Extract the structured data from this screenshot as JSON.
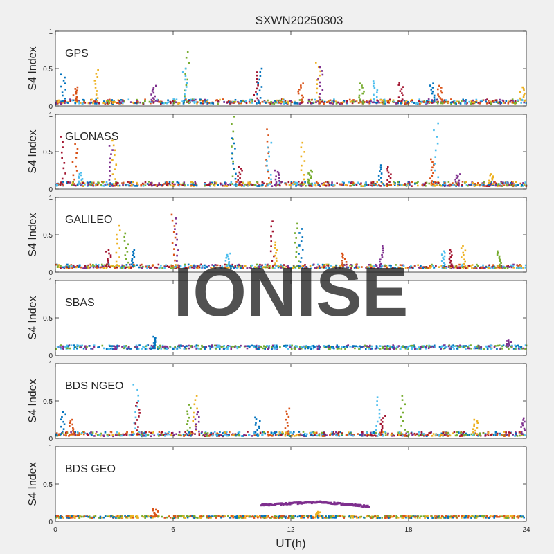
{
  "figure": {
    "title": "SXWN20250303",
    "xlabel": "UT(h)",
    "watermark": "IONISE"
  },
  "chart_data": [
    {
      "type": "scatter",
      "panel": "GPS",
      "label": "GPS",
      "ylabel": "S4 Index",
      "xlim": [
        0,
        24
      ],
      "ylim": [
        0,
        1
      ],
      "yticks": [
        0,
        0.5,
        1
      ],
      "xticks": [
        0,
        6,
        12,
        18,
        24
      ],
      "baseline": 0.06,
      "noise": 0.06,
      "spikes": [
        [
          0.4,
          0.42
        ],
        [
          1.0,
          0.25
        ],
        [
          2.1,
          0.48
        ],
        [
          5.0,
          0.27
        ],
        [
          6.7,
          0.72
        ],
        [
          6.6,
          0.5
        ],
        [
          10.2,
          0.45
        ],
        [
          10.4,
          0.5
        ],
        [
          12.5,
          0.3
        ],
        [
          13.4,
          0.58
        ],
        [
          13.5,
          0.52
        ],
        [
          15.6,
          0.3
        ],
        [
          16.3,
          0.33
        ],
        [
          17.6,
          0.31
        ],
        [
          19.2,
          0.3
        ],
        [
          19.6,
          0.27
        ],
        [
          23.8,
          0.25
        ]
      ],
      "colors": [
        "#0072BD",
        "#D95319",
        "#EDB120",
        "#7E2F8E",
        "#77AC30",
        "#4DBEEE",
        "#A2142F"
      ]
    },
    {
      "type": "scatter",
      "panel": "GLONASS",
      "label": "GLONASS",
      "ylabel": "S4 Index",
      "xlim": [
        0,
        24
      ],
      "ylim": [
        0,
        1
      ],
      "yticks": [
        0,
        0.5,
        1
      ],
      "xticks": [
        0,
        6,
        12,
        18,
        24
      ],
      "baseline": 0.07,
      "noise": 0.06,
      "spikes": [
        [
          0.4,
          0.7
        ],
        [
          1.0,
          0.6
        ],
        [
          1.3,
          0.22
        ],
        [
          2.8,
          0.58
        ],
        [
          3.0,
          0.65
        ],
        [
          9.1,
          0.97
        ],
        [
          9.1,
          0.68
        ],
        [
          9.4,
          0.3
        ],
        [
          10.8,
          0.8
        ],
        [
          10.9,
          0.62
        ],
        [
          11.3,
          0.25
        ],
        [
          12.6,
          0.62
        ],
        [
          13.0,
          0.25
        ],
        [
          16.6,
          0.32
        ],
        [
          17.0,
          0.3
        ],
        [
          19.2,
          0.4
        ],
        [
          19.4,
          0.88
        ],
        [
          20.5,
          0.2
        ],
        [
          22.2,
          0.2
        ]
      ],
      "colors": [
        "#A2142F",
        "#D95319",
        "#4DBEEE",
        "#7E2F8E",
        "#EDB120",
        "#77AC30",
        "#0072BD"
      ]
    },
    {
      "type": "scatter",
      "panel": "GALILEO",
      "label": "GALILEO",
      "ylabel": "S4 Index",
      "xlim": [
        0,
        24
      ],
      "ylim": [
        0,
        1
      ],
      "yticks": [
        0,
        0.5,
        1
      ],
      "xticks": [
        0,
        6,
        12,
        18,
        24
      ],
      "baseline": 0.08,
      "noise": 0.05,
      "spikes": [
        [
          2.7,
          0.3
        ],
        [
          3.2,
          0.62
        ],
        [
          3.6,
          0.52
        ],
        [
          4.0,
          0.3
        ],
        [
          6.0,
          0.77
        ],
        [
          6.2,
          0.72
        ],
        [
          8.8,
          0.25
        ],
        [
          11.1,
          0.68
        ],
        [
          11.3,
          0.4
        ],
        [
          12.3,
          0.65
        ],
        [
          12.5,
          0.58
        ],
        [
          14.7,
          0.25
        ],
        [
          16.6,
          0.35
        ],
        [
          19.8,
          0.28
        ],
        [
          20.2,
          0.3
        ],
        [
          20.8,
          0.35
        ],
        [
          22.6,
          0.28
        ]
      ],
      "colors": [
        "#A2142F",
        "#EDB120",
        "#77AC30",
        "#0072BD",
        "#D95319",
        "#7E2F8E",
        "#4DBEEE"
      ]
    },
    {
      "type": "scatter",
      "panel": "SBAS",
      "label": "SBAS",
      "ylabel": "S4 Index",
      "xlim": [
        0,
        24
      ],
      "ylim": [
        0,
        1
      ],
      "yticks": [
        0,
        0.5,
        1
      ],
      "xticks": [
        0,
        6,
        12,
        18,
        24
      ],
      "baseline": 0.12,
      "noise": 0.03,
      "spikes": [
        [
          5.1,
          0.25
        ],
        [
          23.1,
          0.2
        ]
      ],
      "colors": [
        "#0072BD",
        "#7E2F8E",
        "#77AC30",
        "#4DBEEE"
      ]
    },
    {
      "type": "scatter",
      "panel": "BDS NGEO",
      "label": "BDS NGEO",
      "ylabel": "S4 Index",
      "xlim": [
        0,
        24
      ],
      "ylim": [
        0,
        1
      ],
      "yticks": [
        0,
        0.5,
        1
      ],
      "xticks": [
        0,
        6,
        12,
        18,
        24
      ],
      "baseline": 0.06,
      "noise": 0.06,
      "spikes": [
        [
          0.4,
          0.35
        ],
        [
          0.8,
          0.25
        ],
        [
          4.1,
          0.72
        ],
        [
          4.2,
          0.48
        ],
        [
          6.8,
          0.45
        ],
        [
          7.1,
          0.57
        ],
        [
          7.2,
          0.35
        ],
        [
          10.3,
          0.28
        ],
        [
          11.8,
          0.4
        ],
        [
          16.4,
          0.55
        ],
        [
          16.7,
          0.3
        ],
        [
          17.7,
          0.57
        ],
        [
          21.4,
          0.25
        ],
        [
          23.8,
          0.27
        ]
      ],
      "colors": [
        "#0072BD",
        "#D95319",
        "#4DBEEE",
        "#A2142F",
        "#77AC30",
        "#EDB120",
        "#7E2F8E"
      ]
    },
    {
      "type": "scatter",
      "panel": "BDS GEO",
      "label": "BDS GEO",
      "ylabel": "S4 Index",
      "xlim": [
        0,
        24
      ],
      "ylim": [
        0,
        1
      ],
      "yticks": [
        0,
        0.5,
        1
      ],
      "xticks": [
        0,
        6,
        12,
        18,
        24
      ],
      "baseline": 0.07,
      "noise": 0.015,
      "spikes": [
        [
          5.1,
          0.17
        ],
        [
          13.4,
          0.13
        ]
      ],
      "arc": {
        "x0": 10.5,
        "x1": 16.0,
        "y0": 0.22,
        "ypeak": 0.26,
        "y1": 0.2,
        "color": "#7E2F8E"
      },
      "colors": [
        "#D95319",
        "#EDB120",
        "#77AC30",
        "#0072BD"
      ]
    }
  ]
}
